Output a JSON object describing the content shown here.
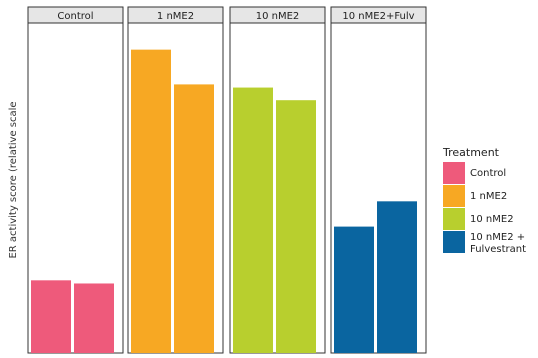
{
  "chart_data": {
    "type": "bar",
    "ylabel": "ER activity score (relative scale",
    "ylim": [
      0,
      100
    ],
    "panels": [
      {
        "title": "Control",
        "values": [
          23,
          22
        ],
        "color": "#ee5a7b"
      },
      {
        "title": "1 nME2",
        "values": [
          96,
          85
        ],
        "color": "#f7a823"
      },
      {
        "title": "10 nME2",
        "values": [
          84,
          80
        ],
        "color": "#b8cf2e"
      },
      {
        "title": "10 nME2+Fulv",
        "values": [
          40,
          48
        ],
        "color": "#0a65a0"
      }
    ],
    "legend": {
      "title": "Treatment",
      "placement": "right",
      "items": [
        {
          "label": "Control",
          "color": "#ee5a7b"
        },
        {
          "label": "1 nME2",
          "color": "#f7a823"
        },
        {
          "label": "10 nME2",
          "color": "#b8cf2e"
        },
        {
          "label": "10 nME2 +",
          "label_line2": "Fulvestrant",
          "color": "#0a65a0"
        }
      ]
    },
    "grid": false
  }
}
